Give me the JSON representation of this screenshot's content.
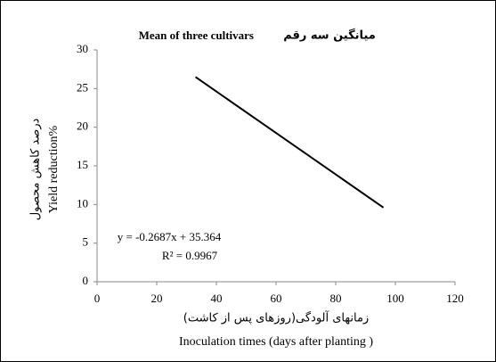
{
  "chart_data": {
    "type": "line",
    "title": "Mean of three cultivars",
    "title_fa": "میانگین سه رقم",
    "y_label_fa": "درصد کاهش محصول",
    "y_label": "Yield reduction%",
    "x_label_fa": "زمانهای آلودگی(روزهای پس از کاشت)",
    "x_label": "Inoculation times (days after planting )",
    "annotations": [
      "y = -0.2687x + 35.364",
      "R² = 0.9967"
    ],
    "x": [
      33,
      96
    ],
    "series": [
      {
        "name": "Mean of three cultivars",
        "color": "#000000",
        "values": [
          26.5,
          9.6
        ]
      }
    ],
    "xlim": [
      0,
      120
    ],
    "xticks": [
      0,
      20,
      40,
      60,
      80,
      100,
      120
    ],
    "ylim": [
      0,
      30
    ],
    "yticks": [
      0,
      5,
      10,
      15,
      20,
      25,
      30
    ],
    "grid": false,
    "legend": false
  }
}
